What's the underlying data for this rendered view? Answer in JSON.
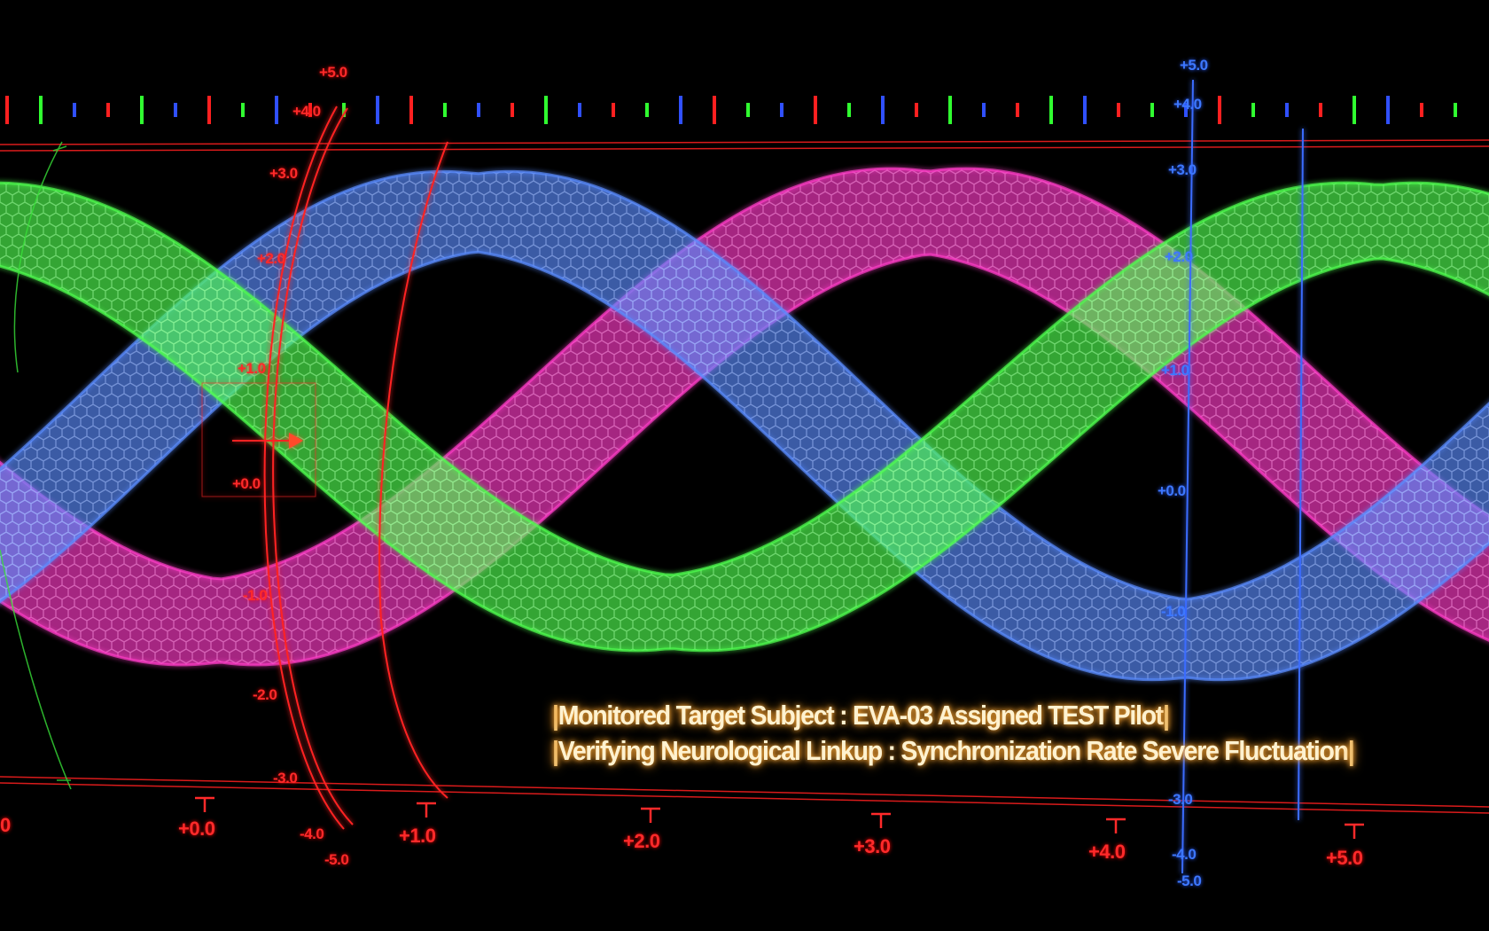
{
  "caption": {
    "line1": "Monitored Target Subject : EVA-03 Assigned TEST Pilot",
    "line2": "Verifying Neurological Linkup : Synchronization Rate Severe Fluctuation"
  },
  "x_axis": {
    "ticks": [
      "+0.0",
      "+1.0",
      "+2.0",
      "+3.0",
      "+4.0",
      "+5.0"
    ]
  },
  "red_axis": {
    "ticks": [
      "+5.0",
      "+4.0",
      "+3.0",
      "+2.0",
      "+1.0",
      "+0.0",
      "-1.0",
      "-2.0",
      "-3.0",
      "-4.0",
      "-5.0"
    ]
  },
  "blue_axis": {
    "ticks": [
      "+5.0",
      "+4.0",
      "+3.0",
      "+2.0",
      "+1.0",
      "+0.0",
      "-1.0",
      "-3.0",
      "-4.0",
      "-5.0"
    ]
  },
  "waves": [
    {
      "color": "#ff3cc8",
      "name": ""
    },
    {
      "color": "#5a8cff",
      "name": ""
    },
    {
      "color": "#50ff50",
      "name": ""
    }
  ],
  "colors": {
    "grid_red": "#ff2020",
    "grid_blue": "#3060ff",
    "caption": "#fff2d0"
  }
}
